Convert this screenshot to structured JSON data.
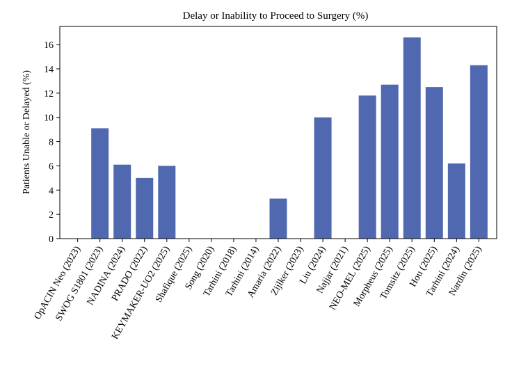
{
  "chart_data": {
    "type": "bar",
    "title": "Delay or Inability to Proceed to Surgery (%)",
    "xlabel": "",
    "ylabel": "Patients Unable or Delayed (%)",
    "ylim": [
      0,
      17.5
    ],
    "yticks": [
      0,
      2,
      4,
      6,
      8,
      10,
      12,
      14,
      16
    ],
    "grid": false,
    "bar_color": "#5068b0",
    "categories": [
      "OpACIN Neo (2023)",
      "SWOG S1801 (2023)",
      "NADINA (2024)",
      "PRADO (2022)",
      "KEYMAKER-UO2 (2025)",
      "Shafique (2025)",
      "Song (2020)",
      "Tarhini (2018)",
      "Tarhini (2014)",
      "Amaria (2022)",
      "Zijlker (2023)",
      "Liu (2024)",
      "Najjar (2021)",
      "NEO-MEL (2025)",
      "Morpheus (2025)",
      "Tomsitz (2025)",
      "Hou (2025)",
      "Tarhini (2024)",
      "Nardin (2025)"
    ],
    "values": [
      0,
      9.1,
      6.1,
      5.0,
      6.0,
      0,
      0,
      0,
      0,
      3.3,
      0,
      10.0,
      0,
      11.8,
      12.7,
      16.6,
      12.5,
      6.2,
      14.3
    ]
  }
}
